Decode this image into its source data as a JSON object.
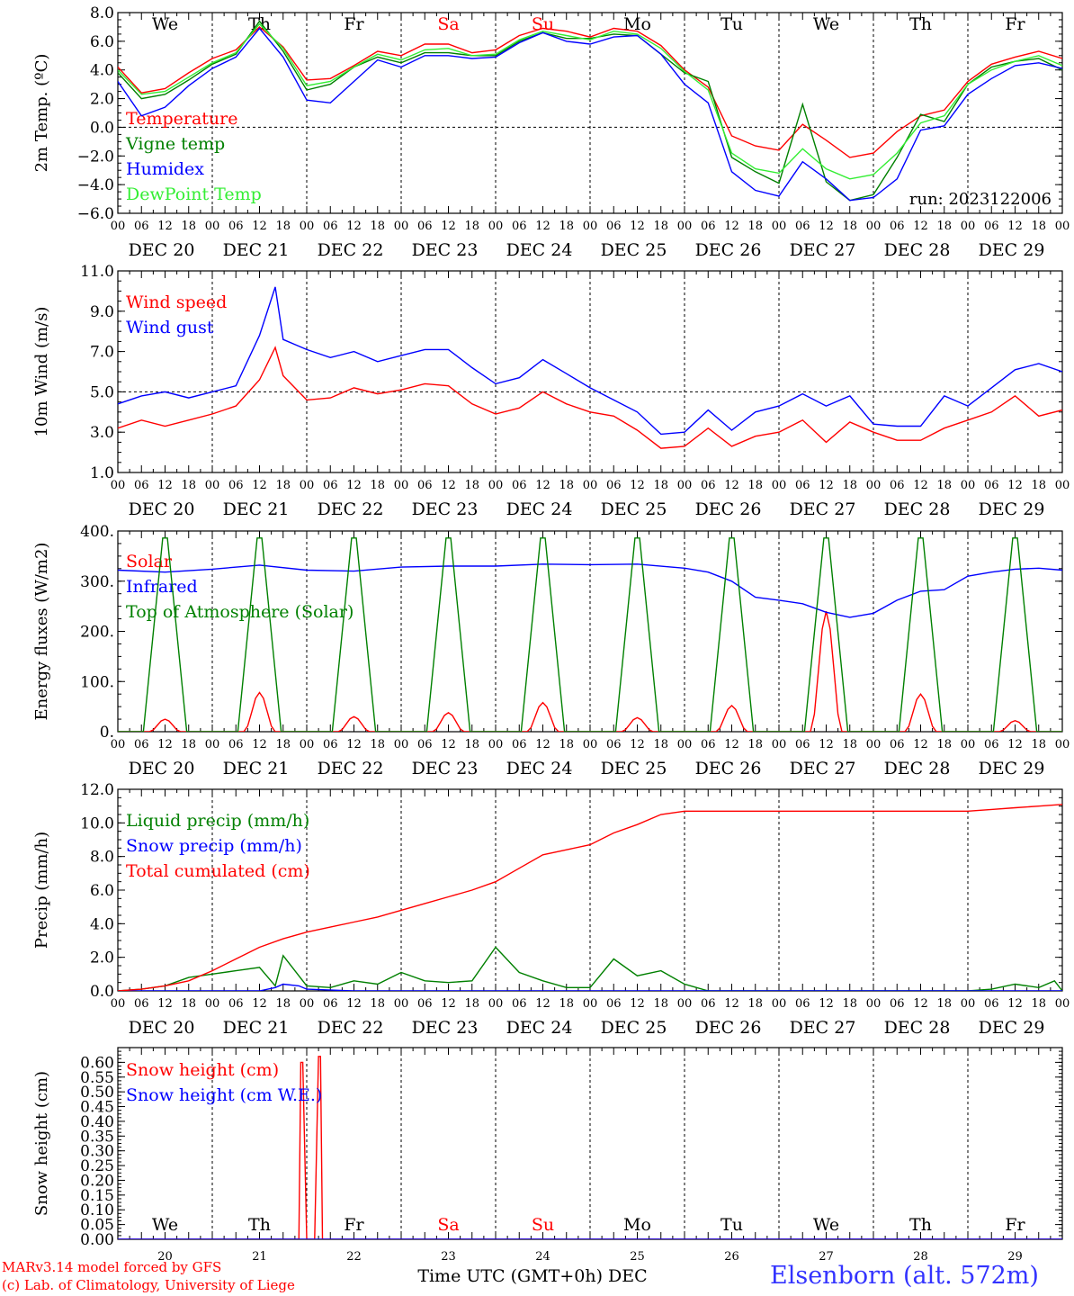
{
  "chart_data": [
    {
      "type": "line",
      "ylabel": "2m Temp. (ºC)",
      "ylim": [
        -6,
        8
      ],
      "yticks": [
        -6,
        -4,
        -2,
        0,
        2,
        4,
        6,
        8
      ],
      "ytick_labels": [
        "−6.0",
        "−4.0",
        "−2.0",
        "0.0",
        "2.0",
        "4.0",
        "6.0",
        "8.0"
      ],
      "xlim_hours": [
        0,
        240
      ],
      "reference_line": 0,
      "annotation": "run: 2023122006",
      "day_labels": [
        {
          "label": "We",
          "color": "#000000"
        },
        {
          "label": "Th",
          "color": "#000000"
        },
        {
          "label": "Fr",
          "color": "#000000"
        },
        {
          "label": "Sa",
          "color": "#ff0000"
        },
        {
          "label": "Su",
          "color": "#ff0000"
        },
        {
          "label": "Mo",
          "color": "#000000"
        },
        {
          "label": "Tu",
          "color": "#000000"
        },
        {
          "label": "We",
          "color": "#000000"
        },
        {
          "label": "Th",
          "color": "#000000"
        },
        {
          "label": "Fr",
          "color": "#000000"
        }
      ],
      "series": [
        {
          "name": "Temperature",
          "color": "#ff0000",
          "x": [
            0,
            6,
            12,
            18,
            24,
            30,
            36,
            42,
            48,
            54,
            60,
            66,
            72,
            78,
            84,
            90,
            96,
            102,
            108,
            114,
            120,
            126,
            132,
            138,
            144,
            150,
            156,
            162,
            168,
            174,
            180,
            186,
            192,
            198,
            204,
            210,
            216,
            222,
            228,
            234,
            240
          ],
          "y": [
            4.2,
            2.4,
            2.7,
            3.8,
            4.8,
            5.4,
            7.0,
            5.6,
            3.3,
            3.4,
            4.3,
            5.3,
            5.0,
            5.8,
            5.8,
            5.2,
            5.4,
            6.4,
            6.9,
            6.7,
            6.3,
            6.9,
            6.7,
            5.7,
            4.0,
            2.8,
            -0.6,
            -1.3,
            -1.6,
            0.2,
            -0.9,
            -2.1,
            -1.8,
            -0.3,
            0.8,
            1.2,
            3.2,
            4.4,
            4.9,
            5.3,
            4.8
          ]
        },
        {
          "name": "Vigne temp",
          "color": "#008000",
          "x": [
            0,
            6,
            12,
            18,
            24,
            30,
            36,
            42,
            48,
            54,
            60,
            66,
            72,
            78,
            84,
            90,
            96,
            102,
            108,
            114,
            120,
            126,
            132,
            138,
            144,
            150,
            156,
            162,
            168,
            174,
            180,
            186,
            192,
            198,
            204,
            210,
            216,
            222,
            228,
            234,
            240
          ],
          "y": [
            3.8,
            2.0,
            2.3,
            3.3,
            4.4,
            5.1,
            7.4,
            5.3,
            2.6,
            3.0,
            4.2,
            4.9,
            4.5,
            5.2,
            5.2,
            5.0,
            5.0,
            6.0,
            6.6,
            6.2,
            6.2,
            6.5,
            6.4,
            5.1,
            3.8,
            3.2,
            -2.1,
            -3.1,
            -3.9,
            1.6,
            -3.8,
            -5.1,
            -4.7,
            -2.1,
            0.9,
            0.4,
            3.0,
            4.2,
            4.6,
            4.8,
            4.0
          ]
        },
        {
          "name": "Humidex",
          "color": "#0000ff",
          "x": [
            0,
            6,
            12,
            18,
            24,
            30,
            36,
            42,
            48,
            54,
            60,
            66,
            72,
            78,
            84,
            90,
            96,
            102,
            108,
            114,
            120,
            126,
            132,
            138,
            144,
            150,
            156,
            162,
            168,
            174,
            180,
            186,
            192,
            198,
            204,
            210,
            216,
            222,
            228,
            234,
            240
          ],
          "y": [
            3.2,
            0.8,
            1.4,
            2.9,
            4.1,
            4.9,
            6.9,
            4.9,
            1.9,
            1.7,
            3.2,
            4.7,
            4.2,
            5.0,
            5.0,
            4.8,
            4.9,
            5.9,
            6.6,
            6.0,
            5.8,
            6.3,
            6.4,
            5.1,
            3.0,
            1.7,
            -3.1,
            -4.4,
            -4.8,
            -2.4,
            -3.6,
            -5.1,
            -4.9,
            -3.6,
            -0.2,
            0.1,
            2.3,
            3.4,
            4.3,
            4.5,
            4.1
          ]
        },
        {
          "name": "DewPoint Temp",
          "color": "#33ee33",
          "x": [
            0,
            6,
            12,
            18,
            24,
            30,
            36,
            42,
            48,
            54,
            60,
            66,
            72,
            78,
            84,
            90,
            96,
            102,
            108,
            114,
            120,
            126,
            132,
            138,
            144,
            150,
            156,
            162,
            168,
            174,
            180,
            186,
            192,
            198,
            204,
            210,
            216,
            222,
            228,
            234,
            240
          ],
          "y": [
            4.0,
            2.3,
            2.5,
            3.5,
            4.5,
            5.2,
            7.2,
            5.5,
            2.9,
            3.2,
            4.2,
            5.1,
            4.7,
            5.4,
            5.5,
            5.0,
            5.1,
            6.1,
            6.7,
            6.4,
            6.1,
            6.7,
            6.5,
            5.5,
            3.9,
            2.6,
            -1.8,
            -2.9,
            -3.2,
            -1.5,
            -2.9,
            -3.6,
            -3.3,
            -1.8,
            0.3,
            0.8,
            3.0,
            4.0,
            4.6,
            5.0,
            4.3
          ]
        }
      ]
    },
    {
      "type": "line",
      "ylabel": "10m Wind (m/s)",
      "ylim": [
        1,
        11
      ],
      "yticks": [
        1,
        3,
        5,
        7,
        9,
        11
      ],
      "ytick_labels": [
        "1.0",
        "3.0",
        "5.0",
        "7.0",
        "9.0",
        "11.0"
      ],
      "xlim_hours": [
        0,
        240
      ],
      "reference_line": 5,
      "series": [
        {
          "name": "Wind speed",
          "color": "#ff0000",
          "x": [
            0,
            6,
            12,
            18,
            24,
            30,
            36,
            40,
            42,
            48,
            54,
            60,
            66,
            72,
            78,
            84,
            90,
            96,
            102,
            108,
            114,
            120,
            126,
            132,
            138,
            144,
            150,
            156,
            162,
            168,
            174,
            180,
            186,
            192,
            198,
            204,
            210,
            216,
            222,
            228,
            234,
            240
          ],
          "y": [
            3.2,
            3.6,
            3.3,
            3.6,
            3.9,
            4.3,
            5.6,
            7.2,
            5.8,
            4.6,
            4.7,
            5.2,
            4.9,
            5.1,
            5.4,
            5.3,
            4.4,
            3.9,
            4.2,
            5.0,
            4.4,
            4.0,
            3.8,
            3.1,
            2.2,
            2.3,
            3.2,
            2.3,
            2.8,
            3.0,
            3.6,
            2.5,
            3.5,
            3.0,
            2.6,
            2.6,
            3.2,
            3.6,
            4.0,
            4.8,
            3.8,
            4.1
          ]
        },
        {
          "name": "Wind gust",
          "color": "#0000ff",
          "x": [
            0,
            6,
            12,
            18,
            24,
            30,
            36,
            40,
            42,
            48,
            54,
            60,
            66,
            72,
            78,
            84,
            90,
            96,
            102,
            108,
            114,
            120,
            126,
            132,
            138,
            144,
            150,
            156,
            162,
            168,
            174,
            180,
            186,
            192,
            198,
            204,
            210,
            216,
            222,
            228,
            234,
            240
          ],
          "y": [
            4.4,
            4.8,
            5.0,
            4.7,
            5.0,
            5.3,
            7.8,
            10.2,
            7.6,
            7.1,
            6.7,
            7.0,
            6.5,
            6.8,
            7.1,
            7.1,
            6.2,
            5.4,
            5.7,
            6.6,
            5.9,
            5.2,
            4.6,
            4.0,
            2.9,
            3.0,
            4.1,
            3.1,
            4.0,
            4.3,
            4.9,
            4.3,
            4.8,
            3.4,
            3.3,
            3.3,
            4.8,
            4.3,
            5.2,
            6.1,
            6.4,
            6.0
          ]
        }
      ]
    },
    {
      "type": "line",
      "ylabel": "Energy fluxes (W/m2)",
      "ylim": [
        0,
        400
      ],
      "yticks": [
        0,
        100,
        200,
        300,
        400
      ],
      "ytick_labels": [
        "0.",
        "100.",
        "200.",
        "300.",
        "400."
      ],
      "xlim_hours": [
        0,
        240
      ],
      "series": [
        {
          "name": "Solar",
          "color": "#ff0000",
          "day_peaks": [
            25,
            78,
            30,
            38,
            58,
            28,
            52,
            240,
            75,
            22
          ]
        },
        {
          "name": "Infrared",
          "color": "#0000ff",
          "x": [
            0,
            12,
            24,
            36,
            48,
            60,
            72,
            84,
            96,
            108,
            120,
            132,
            144,
            150,
            156,
            162,
            168,
            174,
            180,
            186,
            192,
            198,
            204,
            210,
            216,
            222,
            228,
            234,
            240
          ],
          "y": [
            322,
            318,
            324,
            332,
            322,
            320,
            328,
            330,
            330,
            334,
            333,
            334,
            326,
            318,
            300,
            268,
            262,
            255,
            238,
            228,
            236,
            262,
            280,
            283,
            310,
            318,
            324,
            326,
            322
          ]
        },
        {
          "name": "Top of Atmosphere (Solar)",
          "color": "#008000",
          "day_peaks": [
            386,
            386,
            386,
            386,
            386,
            386,
            386,
            386,
            386,
            386
          ]
        }
      ]
    },
    {
      "type": "line",
      "ylabel": "Precip (mm/h)",
      "ylim": [
        0,
        12
      ],
      "yticks": [
        0,
        2,
        4,
        6,
        8,
        10,
        12
      ],
      "ytick_labels": [
        "0.0",
        "2.0",
        "4.0",
        "6.0",
        "8.0",
        "10.0",
        "12.0"
      ],
      "xlim_hours": [
        0,
        240
      ],
      "series": [
        {
          "name": "Liquid precip (mm/h)",
          "color": "#008000",
          "x": [
            0,
            6,
            12,
            18,
            24,
            30,
            36,
            40,
            42,
            48,
            54,
            60,
            66,
            72,
            78,
            84,
            90,
            96,
            102,
            108,
            114,
            120,
            126,
            132,
            138,
            144,
            150,
            156,
            162,
            168,
            174,
            180,
            186,
            192,
            198,
            204,
            210,
            216,
            222,
            228,
            234,
            238,
            240
          ],
          "y": [
            0.0,
            0.1,
            0.3,
            0.8,
            1.0,
            1.2,
            1.4,
            0.3,
            2.1,
            0.3,
            0.2,
            0.6,
            0.4,
            1.1,
            0.6,
            0.5,
            0.6,
            2.6,
            1.1,
            0.6,
            0.2,
            0.2,
            1.9,
            0.9,
            1.2,
            0.4,
            0.0,
            0.0,
            0.0,
            0.0,
            0.0,
            0.0,
            0.0,
            0.0,
            0.0,
            0.0,
            0.0,
            0.0,
            0.1,
            0.4,
            0.2,
            0.6,
            0.0
          ]
        },
        {
          "name": "Snow precip (mm/h)",
          "color": "#0000ff",
          "x": [
            0,
            24,
            36,
            40,
            42,
            46,
            48,
            60,
            240
          ],
          "y": [
            0.0,
            0.0,
            0.0,
            0.2,
            0.4,
            0.3,
            0.1,
            0.0,
            0.0
          ]
        },
        {
          "name": "Total cumulated (cm)",
          "color": "#ff0000",
          "x": [
            0,
            6,
            12,
            18,
            24,
            30,
            36,
            42,
            48,
            54,
            60,
            66,
            72,
            78,
            84,
            90,
            96,
            102,
            108,
            114,
            120,
            126,
            132,
            138,
            144,
            150,
            156,
            162,
            168,
            174,
            180,
            186,
            192,
            198,
            204,
            210,
            216,
            222,
            228,
            234,
            240
          ],
          "y": [
            0.0,
            0.1,
            0.3,
            0.6,
            1.2,
            1.9,
            2.6,
            3.1,
            3.5,
            3.8,
            4.1,
            4.4,
            4.8,
            5.2,
            5.6,
            6.0,
            6.5,
            7.3,
            8.1,
            8.4,
            8.7,
            9.4,
            9.9,
            10.5,
            10.7,
            10.7,
            10.7,
            10.7,
            10.7,
            10.7,
            10.7,
            10.7,
            10.7,
            10.7,
            10.7,
            10.7,
            10.7,
            10.8,
            10.9,
            11.0,
            11.1
          ]
        }
      ]
    },
    {
      "type": "line",
      "ylabel": "Snow height (cm)",
      "ylim": [
        0,
        0.65
      ],
      "yticks": [
        0,
        0.05,
        0.1,
        0.15,
        0.2,
        0.25,
        0.3,
        0.35,
        0.4,
        0.45,
        0.5,
        0.55,
        0.6
      ],
      "ytick_labels": [
        "0.00",
        "0.05",
        "0.10",
        "0.15",
        "0.20",
        "0.25",
        "0.30",
        "0.35",
        "0.40",
        "0.45",
        "0.50",
        "0.55",
        "0.60"
      ],
      "xlim_hours": [
        0,
        240
      ],
      "x_tick_labels": [
        "20",
        "21",
        "22",
        "23",
        "24",
        "25",
        "26",
        "27",
        "28",
        "29"
      ],
      "xlabel": "Time UTC (GMT+0h) DEC",
      "day_labels": [
        {
          "label": "We",
          "color": "#000000"
        },
        {
          "label": "Th",
          "color": "#000000"
        },
        {
          "label": "Fr",
          "color": "#000000"
        },
        {
          "label": "Sa",
          "color": "#ff0000"
        },
        {
          "label": "Su",
          "color": "#ff0000"
        },
        {
          "label": "Mo",
          "color": "#000000"
        },
        {
          "label": "Tu",
          "color": "#000000"
        },
        {
          "label": "We",
          "color": "#000000"
        },
        {
          "label": "Th",
          "color": "#000000"
        },
        {
          "label": "Fr",
          "color": "#000000"
        }
      ],
      "series": [
        {
          "name": "Snow height (cm)",
          "color": "#ff0000",
          "x": [
            0,
            46,
            46.5,
            47,
            48,
            50,
            51,
            51.5,
            52,
            53,
            240
          ],
          "y": [
            0,
            0,
            0.6,
            0.6,
            0,
            0,
            0.62,
            0.62,
            0,
            0,
            0
          ]
        },
        {
          "name": "Snow height (cm W.E.)",
          "color": "#0000ff",
          "x": [
            0,
            240
          ],
          "y": [
            0,
            0
          ]
        }
      ]
    }
  ],
  "hour_tick_labels": [
    "00",
    "06",
    "12",
    "18"
  ],
  "end_hour_label": "00",
  "date_labels": [
    "DEC 20",
    "DEC 21",
    "DEC 22",
    "DEC 23",
    "DEC 24",
    "DEC 25",
    "DEC 26",
    "DEC 27",
    "DEC 28",
    "DEC 29"
  ],
  "footer": {
    "model_line": "MARv3.14 model forced by GFS",
    "copyright_line": "(c) Lab. of Climatology, University of Liege",
    "station": "Elsenborn (alt. 572m)"
  },
  "colors": {
    "axis": "#000000",
    "footer_red": "#ff0000",
    "station_blue": "#3333ff"
  }
}
